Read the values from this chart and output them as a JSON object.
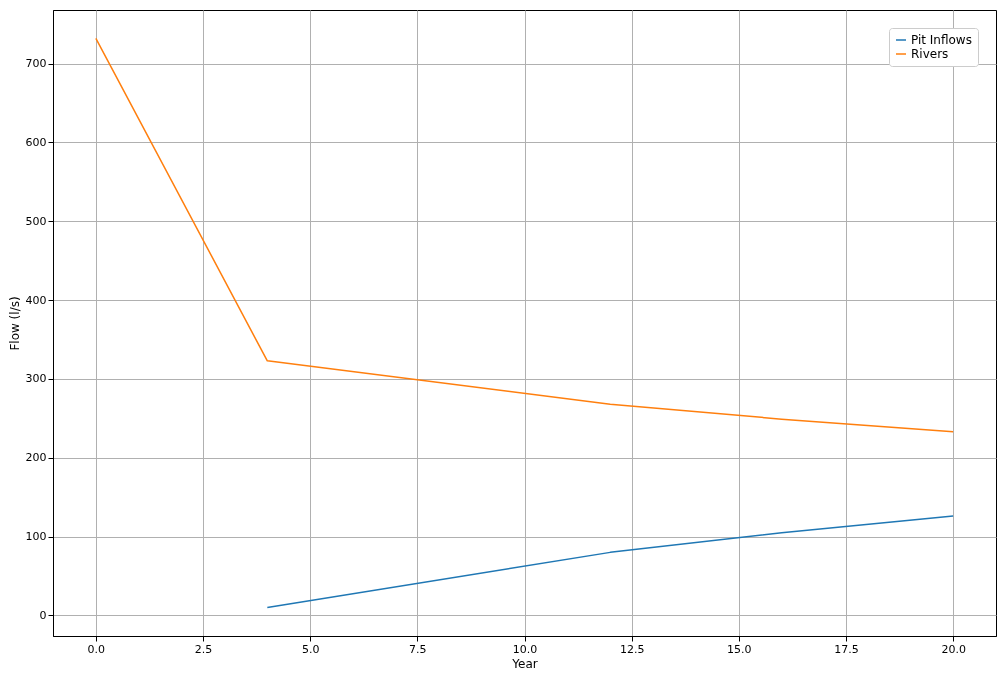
{
  "chart_data": {
    "type": "line",
    "xlabel": "Year",
    "ylabel": "Flow (l/s)",
    "xlim": [
      -1,
      21
    ],
    "ylim": [
      -26.1,
      768.1
    ],
    "xticks": [
      {
        "value": 0,
        "label": "0.0"
      },
      {
        "value": 2.5,
        "label": "2.5"
      },
      {
        "value": 5,
        "label": "5.0"
      },
      {
        "value": 7.5,
        "label": "7.5"
      },
      {
        "value": 10,
        "label": "10.0"
      },
      {
        "value": 12.5,
        "label": "12.5"
      },
      {
        "value": 15,
        "label": "15.0"
      },
      {
        "value": 17.5,
        "label": "17.5"
      },
      {
        "value": 20,
        "label": "20.0"
      }
    ],
    "yticks": [
      0,
      100,
      200,
      300,
      400,
      500,
      600,
      700
    ],
    "grid": true,
    "legend": "top right",
    "line_style": "solid",
    "marker": "none",
    "series": [
      {
        "name": "Pit Inflows",
        "color": "#1f77b4",
        "x": [
          4,
          12,
          16,
          20
        ],
        "values": [
          10,
          80,
          105,
          126
        ]
      },
      {
        "name": "Rivers",
        "color": "#ff7f0e",
        "x": [
          0,
          4,
          12,
          16,
          20
        ],
        "values": [
          732,
          323,
          268,
          249,
          233
        ]
      }
    ]
  }
}
